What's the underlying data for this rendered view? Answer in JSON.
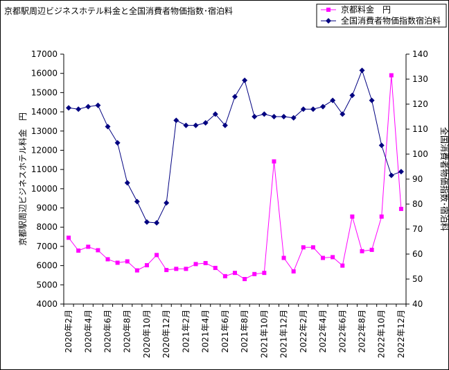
{
  "chart_data": {
    "type": "line",
    "title": "京都駅周辺ビジネスホテル料金と全国消費者物価指数･宿泊料",
    "ylabel_left": "京都駅周辺ビジネスホテル料金　円",
    "ylabel_right": "全国消費者物価指数･宿泊料",
    "ylim_left": [
      4000,
      17000
    ],
    "ylim_right": [
      40,
      140
    ],
    "yticks_left": [
      "4000",
      "5000",
      "6000",
      "7000",
      "8000",
      "9000",
      "10000",
      "11000",
      "12000",
      "13000",
      "14000",
      "15000",
      "16000",
      "17000"
    ],
    "yticks_right": [
      "40",
      "50",
      "60",
      "70",
      "80",
      "90",
      "100",
      "110",
      "120",
      "130",
      "140"
    ],
    "x": [
      "2020年2月",
      "2020年3月",
      "2020年4月",
      "2020年5月",
      "2020年6月",
      "2020年7月",
      "2020年8月",
      "2020年9月",
      "2020年10月",
      "2020年11月",
      "2020年12月",
      "2021年1月",
      "2021年2月",
      "2021年3月",
      "2021年4月",
      "2021年5月",
      "2021年6月",
      "2021年7月",
      "2021年8月",
      "2021年9月",
      "2021年10月",
      "2021年11月",
      "2021年12月",
      "2022年1月",
      "2022年2月",
      "2022年3月",
      "2022年4月",
      "2022年5月",
      "2022年6月",
      "2022年7月",
      "2022年8月",
      "2022年9月",
      "2022年10月",
      "2022年11月",
      "2022年12月"
    ],
    "xtick_labels": [
      "2020年2月",
      "2020年4月",
      "2020年6月",
      "2020年8月",
      "2020年10月",
      "2020年12月",
      "2021年2月",
      "2021年4月",
      "2021年6月",
      "2021年8月",
      "2021年10月",
      "2021年12月",
      "2022年2月",
      "2022年4月",
      "2022年6月",
      "2022年8月",
      "2022年10月",
      "2022年12月"
    ],
    "grid": false,
    "legend_position": "top-right",
    "series": [
      {
        "name": "京都料金　円",
        "axis": "left",
        "color": "#ff00ff",
        "marker": "square",
        "values": [
          7450,
          6780,
          6980,
          6800,
          6330,
          6150,
          6220,
          5750,
          6020,
          6550,
          5770,
          5830,
          5830,
          6080,
          6130,
          5880,
          5450,
          5620,
          5300,
          5560,
          5620,
          11420,
          6400,
          5700,
          6950,
          6950,
          6400,
          6440,
          6000,
          8550,
          6750,
          6820,
          8550,
          15900,
          8950
        ]
      },
      {
        "name": "全国消費者物価指数宿泊料",
        "axis": "right",
        "color": "#000080",
        "marker": "diamond",
        "values": [
          118.5,
          118.0,
          119.0,
          119.5,
          111.0,
          104.5,
          88.5,
          81.0,
          72.8,
          72.5,
          80.5,
          113.5,
          111.5,
          111.5,
          112.5,
          116.0,
          111.5,
          123.0,
          129.5,
          115.0,
          116.0,
          115.0,
          115.0,
          114.5,
          118.0,
          118.0,
          119.0,
          121.5,
          116.0,
          123.5,
          133.5,
          121.5,
          103.5,
          91.5,
          93.0
        ]
      }
    ]
  }
}
